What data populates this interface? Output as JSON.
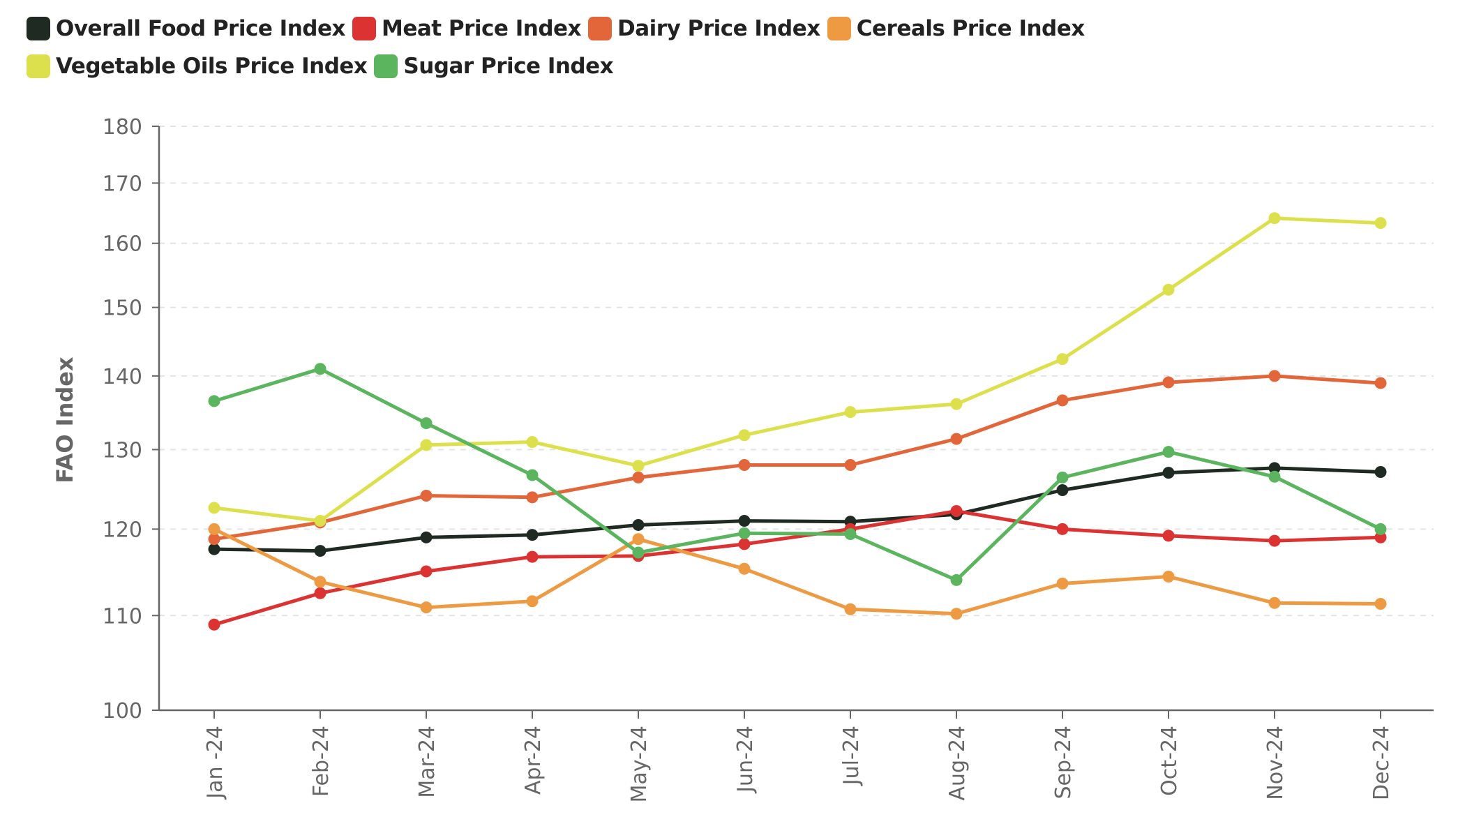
{
  "chart_data": {
    "type": "line",
    "ylabel": "FAO Index",
    "xlabel": "",
    "y_scale": "log",
    "ylim": [
      100,
      180
    ],
    "yticks": [
      "100",
      "110",
      "120",
      "130",
      "140",
      "150",
      "160",
      "170",
      "180"
    ],
    "grid": "horizontal dashed",
    "legend_position": "top-left",
    "categories": [
      "Jan -24",
      "Feb-24",
      "Mar-24",
      "Apr-24",
      "May-24",
      "Jun-24",
      "Jul-24",
      "Aug-24",
      "Sep-24",
      "Oct-24",
      "Nov-24",
      "Dec-24"
    ],
    "series": [
      {
        "name": "Overall Food Price Index",
        "color": "#1f2a22",
        "values": [
          117.6,
          117.4,
          119.0,
          119.3,
          120.5,
          121.0,
          120.9,
          121.8,
          124.8,
          127.0,
          127.6,
          127.1
        ]
      },
      {
        "name": "Meat Price Index",
        "color": "#dc3232",
        "values": [
          109.0,
          112.5,
          115.0,
          116.7,
          116.8,
          118.2,
          120.0,
          122.2,
          120.0,
          119.2,
          118.6,
          119.0
        ]
      },
      {
        "name": "Dairy Price Index",
        "color": "#e2663a",
        "values": [
          118.8,
          120.8,
          124.1,
          123.9,
          126.4,
          128.0,
          128.0,
          131.4,
          136.6,
          139.1,
          140.0,
          139.0
        ]
      },
      {
        "name": "Cereals Price Index",
        "color": "#ee9a42",
        "values": [
          120.0,
          113.8,
          110.9,
          111.6,
          118.8,
          115.3,
          110.7,
          110.2,
          113.6,
          114.4,
          111.4,
          111.3
        ]
      },
      {
        "name": "Vegetable Oils Price Index",
        "color": "#dde04d",
        "values": [
          122.6,
          121.0,
          130.6,
          131.0,
          127.9,
          131.9,
          135.0,
          136.1,
          142.4,
          152.7,
          164.1,
          163.3
        ]
      },
      {
        "name": "Sugar Price Index",
        "color": "#5ab55e",
        "values": [
          136.5,
          141.0,
          133.5,
          126.7,
          117.2,
          119.5,
          119.4,
          114.0,
          126.4,
          129.7,
          126.5,
          120.0
        ]
      }
    ]
  }
}
